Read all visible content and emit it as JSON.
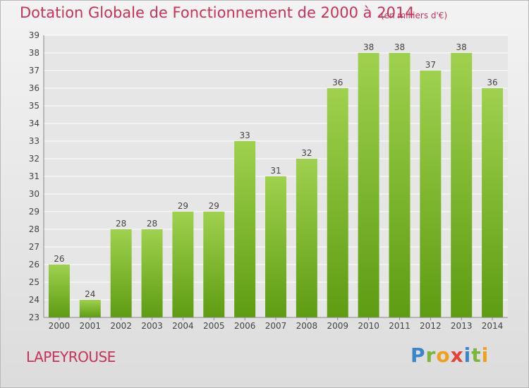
{
  "header": {
    "title": "Dotation Globale de Fonctionnement de 2000 à 2014",
    "unit": "(en milliers d'€)"
  },
  "footer": {
    "commune": "LAPEYROUSE",
    "logo_letters": [
      "P",
      "r",
      "o",
      "x",
      "i",
      "t",
      "i"
    ]
  },
  "colors": {
    "title": "#c8325a",
    "bar_top": "#9fd14e",
    "bar_bottom": "#5e9c12",
    "grid": "#ffffff",
    "axis_text": "#444444"
  },
  "chart_data": {
    "type": "bar",
    "title": "Dotation Globale de Fonctionnement de 2000 à 2014",
    "xlabel": "",
    "ylabel": "",
    "ylim": [
      23,
      39
    ],
    "yticks": [
      23,
      24,
      25,
      26,
      27,
      28,
      29,
      30,
      31,
      32,
      33,
      34,
      35,
      36,
      37,
      38,
      39
    ],
    "grid": true,
    "categories": [
      "2000",
      "2001",
      "2002",
      "2003",
      "2004",
      "2005",
      "2006",
      "2007",
      "2008",
      "2009",
      "2010",
      "2011",
      "2012",
      "2013",
      "2014"
    ],
    "values": [
      26,
      24,
      28,
      28,
      29,
      29,
      33,
      31,
      32,
      36,
      38,
      38,
      37,
      38,
      36
    ]
  }
}
